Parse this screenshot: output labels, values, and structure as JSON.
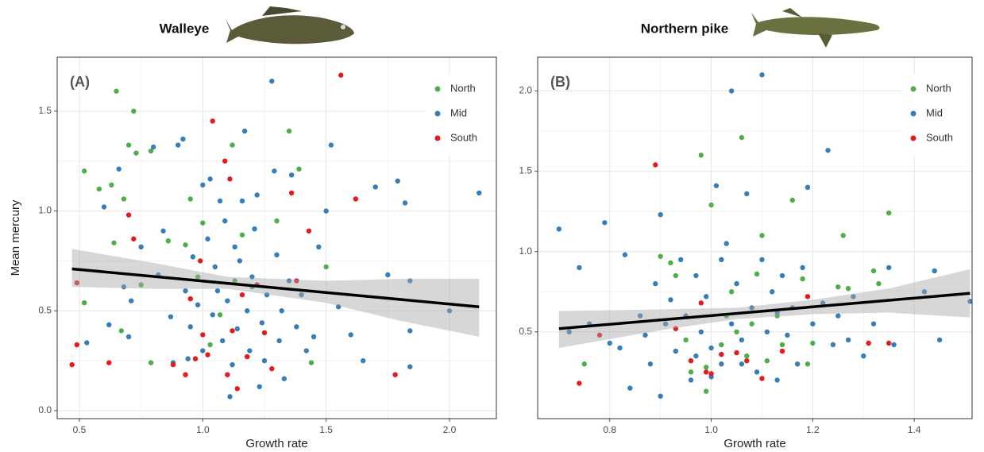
{
  "chart_data": [
    {
      "type": "scatter",
      "title": "Walleye",
      "panel_label": "(A)",
      "x_label": "Growth rate",
      "y_label": "Mean mercury",
      "xlim": [
        0.41,
        2.19
      ],
      "ylim": [
        -0.04,
        1.77
      ],
      "xticks": [
        0.5,
        {
          "value": 1,
          "label": "1.0"
        },
        1.5,
        {
          "value": 2,
          "label": "2.0"
        }
      ],
      "yticks": [
        {
          "value": 0,
          "label": "0.0"
        },
        0.5,
        {
          "value": 1,
          "label": "1.0"
        },
        1.5
      ],
      "grid": true,
      "legend_position": "top right",
      "series": [
        {
          "name": "North",
          "color": "#4daf4a",
          "x": [
            0.52,
            0.58,
            0.63,
            0.65,
            0.7,
            0.72,
            0.73,
            0.68,
            0.64,
            0.52,
            0.67,
            0.79,
            0.79,
            0.86,
            0.95,
            1.0,
            1.12,
            1.13,
            1.16,
            1.35,
            1.39,
            1.3,
            1.5,
            1.44,
            0.98,
            1.03,
            1.07,
            0.75,
            0.93,
            1.2
          ],
          "values": [
            1.2,
            1.11,
            1.13,
            1.6,
            1.33,
            1.5,
            1.29,
            1.06,
            0.84,
            0.54,
            0.4,
            1.3,
            0.24,
            0.85,
            1.06,
            0.94,
            1.33,
            0.65,
            0.88,
            1.4,
            1.21,
            0.95,
            0.72,
            0.24,
            0.67,
            0.33,
            0.48,
            0.63,
            0.83,
            0.62
          ]
        },
        {
          "name": "Mid",
          "color": "#377eb8",
          "x": [
            0.6,
            0.66,
            0.68,
            0.71,
            0.75,
            0.7,
            0.62,
            0.53,
            0.8,
            0.82,
            0.84,
            0.88,
            0.9,
            0.92,
            0.93,
            0.95,
            0.96,
            0.98,
            1.0,
            1.02,
            1.03,
            1.04,
            1.05,
            1.06,
            1.07,
            1.08,
            1.09,
            1.1,
            1.11,
            1.12,
            1.13,
            1.14,
            1.15,
            1.16,
            1.17,
            1.18,
            1.19,
            1.2,
            1.21,
            1.22,
            1.24,
            1.25,
            1.26,
            1.28,
            1.29,
            1.3,
            1.31,
            1.32,
            1.33,
            1.35,
            1.36,
            1.38,
            1.4,
            1.42,
            1.45,
            1.47,
            1.5,
            1.52,
            1.55,
            1.6,
            1.65,
            1.7,
            1.75,
            1.79,
            1.82,
            1.84,
            1.84,
            1.84,
            2.0,
            2.12,
            1.23,
            0.87,
            1.0,
            0.94
          ],
          "values": [
            1.02,
            1.21,
            0.62,
            0.55,
            0.82,
            0.37,
            0.43,
            0.34,
            1.32,
            0.68,
            0.9,
            0.24,
            1.33,
            1.36,
            0.6,
            0.42,
            0.77,
            0.53,
            0.3,
            0.86,
            1.16,
            0.48,
            0.72,
            0.6,
            1.05,
            0.35,
            0.95,
            0.55,
            0.07,
            0.23,
            0.82,
            0.41,
            0.75,
            1.05,
            1.4,
            0.5,
            0.3,
            0.67,
            0.91,
            1.08,
            0.44,
            0.25,
            0.58,
            1.65,
            1.2,
            0.78,
            0.35,
            0.5,
            0.16,
            0.65,
            1.18,
            0.42,
            0.58,
            0.3,
            0.37,
            0.82,
            1.0,
            1.33,
            0.52,
            0.38,
            0.25,
            1.12,
            0.68,
            1.15,
            1.04,
            0.65,
            0.22,
            0.4,
            0.5,
            1.09,
            0.12,
            0.47,
            1.13,
            0.26
          ]
        },
        {
          "name": "South",
          "color": "#e41a1c",
          "x": [
            0.47,
            0.49,
            0.49,
            0.62,
            0.7,
            0.72,
            0.88,
            0.93,
            0.97,
            0.99,
            1.0,
            1.02,
            1.04,
            1.09,
            1.1,
            1.11,
            1.12,
            1.14,
            1.16,
            1.18,
            1.22,
            1.25,
            1.28,
            1.36,
            1.38,
            1.43,
            1.56,
            1.62,
            1.78,
            0.95
          ],
          "values": [
            0.23,
            0.33,
            0.64,
            0.24,
            0.98,
            0.86,
            0.23,
            0.18,
            0.26,
            0.75,
            0.38,
            0.28,
            1.45,
            1.25,
            0.18,
            1.16,
            0.4,
            0.11,
            0.58,
            0.27,
            0.63,
            0.39,
            0.21,
            1.09,
            0.65,
            0.9,
            1.68,
            1.06,
            0.18,
            0.56
          ]
        }
      ],
      "fit": {
        "x": [
          0.47,
          2.12
        ],
        "y": [
          0.71,
          0.52
        ]
      },
      "band": {
        "x": [
          0.47,
          0.8,
          1.1,
          1.5,
          1.8,
          2.12
        ],
        "lower": [
          0.62,
          0.61,
          0.61,
          0.54,
          0.45,
          0.37
        ],
        "upper": [
          0.81,
          0.74,
          0.67,
          0.65,
          0.66,
          0.66
        ]
      }
    },
    {
      "type": "scatter",
      "title": "Northern pike",
      "panel_label": "(B)",
      "x_label": "Growth rate",
      "xlim": [
        0.658,
        1.514
      ],
      "ylim": [
        -0.04,
        2.21
      ],
      "xticks": [
        0.8,
        {
          "value": 1,
          "label": "1.0"
        },
        1.2,
        1.4
      ],
      "yticks": [
        0.5,
        {
          "value": 1,
          "label": "1.0"
        },
        1.5,
        {
          "value": 2,
          "label": "2.0"
        }
      ],
      "grid": true,
      "legend_position": "top right",
      "series": [
        {
          "name": "North",
          "color": "#4daf4a",
          "x": [
            0.75,
            0.9,
            0.92,
            0.93,
            0.96,
            0.98,
            0.99,
            0.99,
            1.0,
            1.02,
            1.04,
            1.05,
            1.06,
            1.08,
            1.09,
            1.1,
            1.11,
            1.13,
            1.14,
            1.16,
            1.18,
            1.19,
            1.2,
            1.25,
            1.26,
            1.27,
            1.32,
            1.33,
            1.35,
            1.03,
            0.95,
            1.07
          ],
          "values": [
            0.3,
            0.97,
            0.93,
            0.85,
            0.25,
            1.6,
            0.13,
            0.28,
            1.29,
            0.42,
            0.75,
            0.5,
            1.71,
            0.55,
            0.86,
            1.1,
            0.32,
            0.6,
            0.42,
            1.32,
            0.83,
            0.3,
            0.43,
            0.78,
            1.1,
            0.77,
            0.88,
            0.8,
            1.24,
            0.6,
            0.45,
            0.35
          ]
        },
        {
          "name": "Mid",
          "color": "#377eb8",
          "x": [
            0.7,
            0.72,
            0.74,
            0.76,
            0.79,
            0.8,
            0.82,
            0.83,
            0.84,
            0.86,
            0.87,
            0.88,
            0.89,
            0.9,
            0.9,
            0.91,
            0.92,
            0.93,
            0.94,
            0.95,
            0.96,
            0.97,
            0.98,
            0.99,
            1.0,
            1.01,
            1.02,
            1.02,
            1.03,
            1.04,
            1.04,
            1.05,
            1.06,
            1.07,
            1.08,
            1.09,
            1.1,
            1.1,
            1.11,
            1.12,
            1.13,
            1.14,
            1.15,
            1.16,
            1.17,
            1.18,
            1.19,
            1.2,
            1.22,
            1.23,
            1.24,
            1.25,
            1.27,
            1.28,
            1.3,
            1.32,
            1.35,
            1.36,
            1.42,
            1.44,
            1.45,
            1.51,
            1.0,
            0.97,
            1.06,
            1.13
          ],
          "values": [
            1.14,
            0.5,
            0.9,
            0.55,
            1.18,
            0.43,
            0.4,
            0.98,
            0.15,
            0.6,
            0.48,
            0.3,
            0.8,
            0.1,
            1.23,
            0.55,
            0.7,
            0.38,
            0.95,
            0.6,
            0.2,
            0.85,
            0.5,
            0.72,
            0.4,
            1.41,
            0.95,
            0.3,
            1.05,
            2.0,
            0.55,
            0.8,
            0.45,
            1.36,
            0.65,
            0.25,
            0.95,
            2.1,
            0.5,
            0.75,
            0.2,
            0.85,
            0.48,
            0.65,
            0.3,
            0.9,
            1.4,
            0.55,
            0.68,
            1.63,
            0.42,
            0.6,
            0.45,
            0.72,
            0.35,
            0.55,
            0.9,
            0.42,
            0.75,
            0.88,
            0.45,
            0.69,
            0.22,
            0.35,
            0.3,
            0.62
          ]
        },
        {
          "name": "South",
          "color": "#e41a1c",
          "x": [
            0.74,
            0.78,
            0.89,
            0.93,
            0.96,
            0.98,
            0.99,
            1.0,
            1.02,
            1.05,
            1.07,
            1.1,
            1.14,
            1.19,
            1.31,
            1.35
          ],
          "values": [
            0.18,
            0.48,
            1.54,
            0.52,
            0.32,
            0.68,
            0.25,
            0.24,
            0.36,
            0.37,
            0.32,
            0.21,
            0.38,
            0.72,
            0.43,
            0.43
          ]
        }
      ],
      "fit": {
        "x": [
          0.7,
          1.51
        ],
        "y": [
          0.52,
          0.74
        ]
      },
      "band": {
        "x": [
          0.7,
          0.9,
          1.05,
          1.2,
          1.35,
          1.51
        ],
        "lower": [
          0.4,
          0.51,
          0.58,
          0.61,
          0.62,
          0.59
        ],
        "upper": [
          0.63,
          0.64,
          0.65,
          0.7,
          0.77,
          0.89
        ]
      }
    }
  ]
}
